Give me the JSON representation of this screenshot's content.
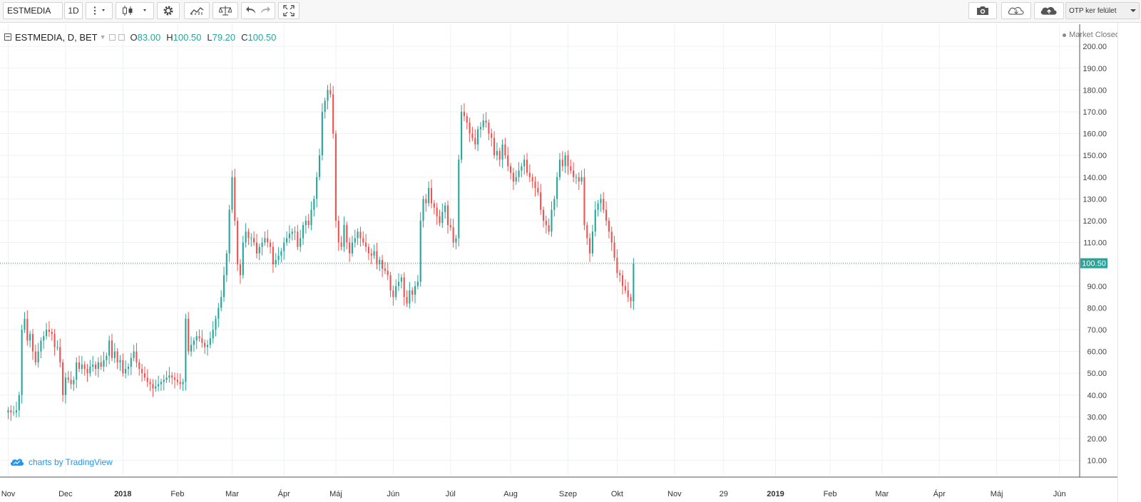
{
  "toolbar": {
    "symbol": "ESTMEDIA",
    "interval": "1D",
    "layout_name": "OTP ker felület"
  },
  "legend": {
    "symbol": "ESTMEDIA",
    "interval": "D",
    "exchange": "BET",
    "o_label": "O",
    "o_value": "83.00",
    "h_label": "H",
    "h_value": "100.50",
    "l_label": "L",
    "l_value": "79.20",
    "c_label": "C",
    "c_value": "100.50"
  },
  "market_status": "Market Closed",
  "watermark": "charts by TradingView",
  "colors": {
    "up": "#26a69a",
    "down": "#ef5350",
    "grid": "#eef1f4",
    "price_line": "#26a69a"
  },
  "chart_data": {
    "type": "candlestick",
    "title": "",
    "xlabel": "",
    "ylabel": "",
    "grid": true,
    "y_ticks": [
      "10.00",
      "20.00",
      "30.00",
      "40.00",
      "50.00",
      "60.00",
      "70.00",
      "80.00",
      "90.00",
      "100.00",
      "110.00",
      "120.00",
      "130.00",
      "140.00",
      "150.00",
      "160.00",
      "170.00",
      "180.00",
      "190.00",
      "200.00"
    ],
    "ylim": [
      3,
      203
    ],
    "x_ticks": [
      {
        "label": "Nov",
        "pos": 0
      },
      {
        "label": "Dec",
        "pos": 21
      },
      {
        "label": "2018",
        "pos": 42,
        "bold": true
      },
      {
        "label": "Feb",
        "pos": 62
      },
      {
        "label": "Mar",
        "pos": 82
      },
      {
        "label": "Ápr",
        "pos": 101
      },
      {
        "label": "Máj",
        "pos": 120
      },
      {
        "label": "Jún",
        "pos": 141
      },
      {
        "label": "Júl",
        "pos": 162
      },
      {
        "label": "Aug",
        "pos": 184
      },
      {
        "label": "Szep",
        "pos": 205
      },
      {
        "label": "Okt",
        "pos": 223
      },
      {
        "label": "Nov",
        "pos": 244
      },
      {
        "label": "29",
        "pos": 262
      },
      {
        "label": "2019",
        "pos": 281,
        "bold": true
      },
      {
        "label": "Feb",
        "pos": 301
      },
      {
        "label": "Mar",
        "pos": 320
      },
      {
        "label": "Ápr",
        "pos": 341
      },
      {
        "label": "Máj",
        "pos": 362
      },
      {
        "label": "Jún",
        "pos": 385
      }
    ],
    "x_range": [
      -3,
      395
    ],
    "last_price": 100.5,
    "last_price_label": "100.50",
    "closes": [
      33,
      32,
      32,
      33,
      40,
      70,
      75,
      65,
      68,
      60,
      55,
      60,
      65,
      67,
      70,
      69,
      68,
      62,
      62,
      55,
      40,
      48,
      47,
      45,
      47,
      55,
      52,
      54,
      52,
      50,
      53,
      54,
      52,
      55,
      53,
      56,
      58,
      65,
      57,
      60,
      55,
      56,
      50,
      52,
      53,
      57,
      60,
      55,
      52,
      50,
      48,
      46,
      45,
      43,
      44,
      45,
      46,
      47,
      48,
      49,
      48,
      47,
      46,
      45,
      46,
      75,
      60,
      63,
      65,
      67,
      66,
      64,
      62,
      63,
      66,
      70,
      75,
      80,
      85,
      95,
      105,
      125,
      140,
      120,
      100,
      95,
      110,
      115,
      112,
      112,
      110,
      105,
      108,
      110,
      112,
      110,
      108,
      100,
      102,
      104,
      106,
      110,
      112,
      114,
      115,
      115,
      108,
      112,
      118,
      120,
      118,
      125,
      130,
      140,
      150,
      170,
      175,
      180,
      178,
      160,
      120,
      110,
      108,
      118,
      110,
      105,
      110,
      112,
      115,
      112,
      110,
      108,
      105,
      104,
      106,
      100,
      102,
      98,
      97,
      95,
      88,
      85,
      90,
      92,
      94,
      85,
      82,
      88,
      86,
      90,
      92,
      120,
      130,
      128,
      135,
      128,
      126,
      122,
      119,
      124,
      127,
      118,
      117,
      110,
      112,
      148,
      170,
      168,
      165,
      160,
      158,
      155,
      162,
      163,
      166,
      165,
      160,
      158,
      150,
      152,
      148,
      155,
      150,
      145,
      142,
      138,
      140,
      143,
      145,
      148,
      142,
      140,
      138,
      135,
      133,
      125,
      120,
      118,
      115,
      125,
      130,
      140,
      148,
      145,
      150,
      145,
      143,
      140,
      140,
      138,
      140,
      118,
      112,
      105,
      115,
      125,
      128,
      130,
      125,
      120,
      115,
      110,
      103,
      96,
      95,
      90,
      88,
      85,
      83,
      100.5
    ]
  }
}
